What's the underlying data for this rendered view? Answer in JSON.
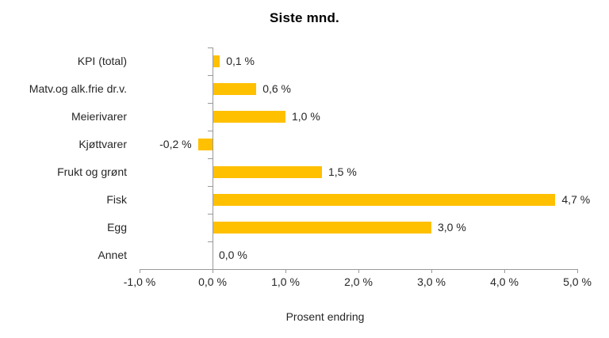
{
  "chart_data": {
    "type": "bar",
    "orientation": "horizontal",
    "title": "Siste mnd.",
    "categories": [
      "KPI (total)",
      "Matv.og alk.frie dr.v.",
      "Meierivarer",
      "Kjøttvarer",
      "Frukt og grønt",
      "Fisk",
      "Egg",
      "Annet"
    ],
    "values": [
      0.1,
      0.6,
      1.0,
      -0.2,
      1.5,
      4.7,
      3.0,
      0.0
    ],
    "data_labels": [
      "0,1 %",
      "0,6 %",
      "1,0 %",
      "-0,2 %",
      "1,5 %",
      "4,7 %",
      "3,0 %",
      "0,0 %"
    ],
    "xlabel": "Prosent endring",
    "ylabel": "",
    "xlim": [
      -1.0,
      5.0
    ],
    "x_ticks": [
      -1.0,
      0.0,
      1.0,
      2.0,
      3.0,
      4.0,
      5.0
    ],
    "x_tick_labels": [
      "-1,0 %",
      "0,0 %",
      "1,0 %",
      "2,0 %",
      "3,0 %",
      "4,0 %",
      "5,0 %"
    ],
    "grid": false,
    "legend": false,
    "bar_color": "#FFC000",
    "axis_color": "#999999",
    "text_color": "#262626"
  }
}
